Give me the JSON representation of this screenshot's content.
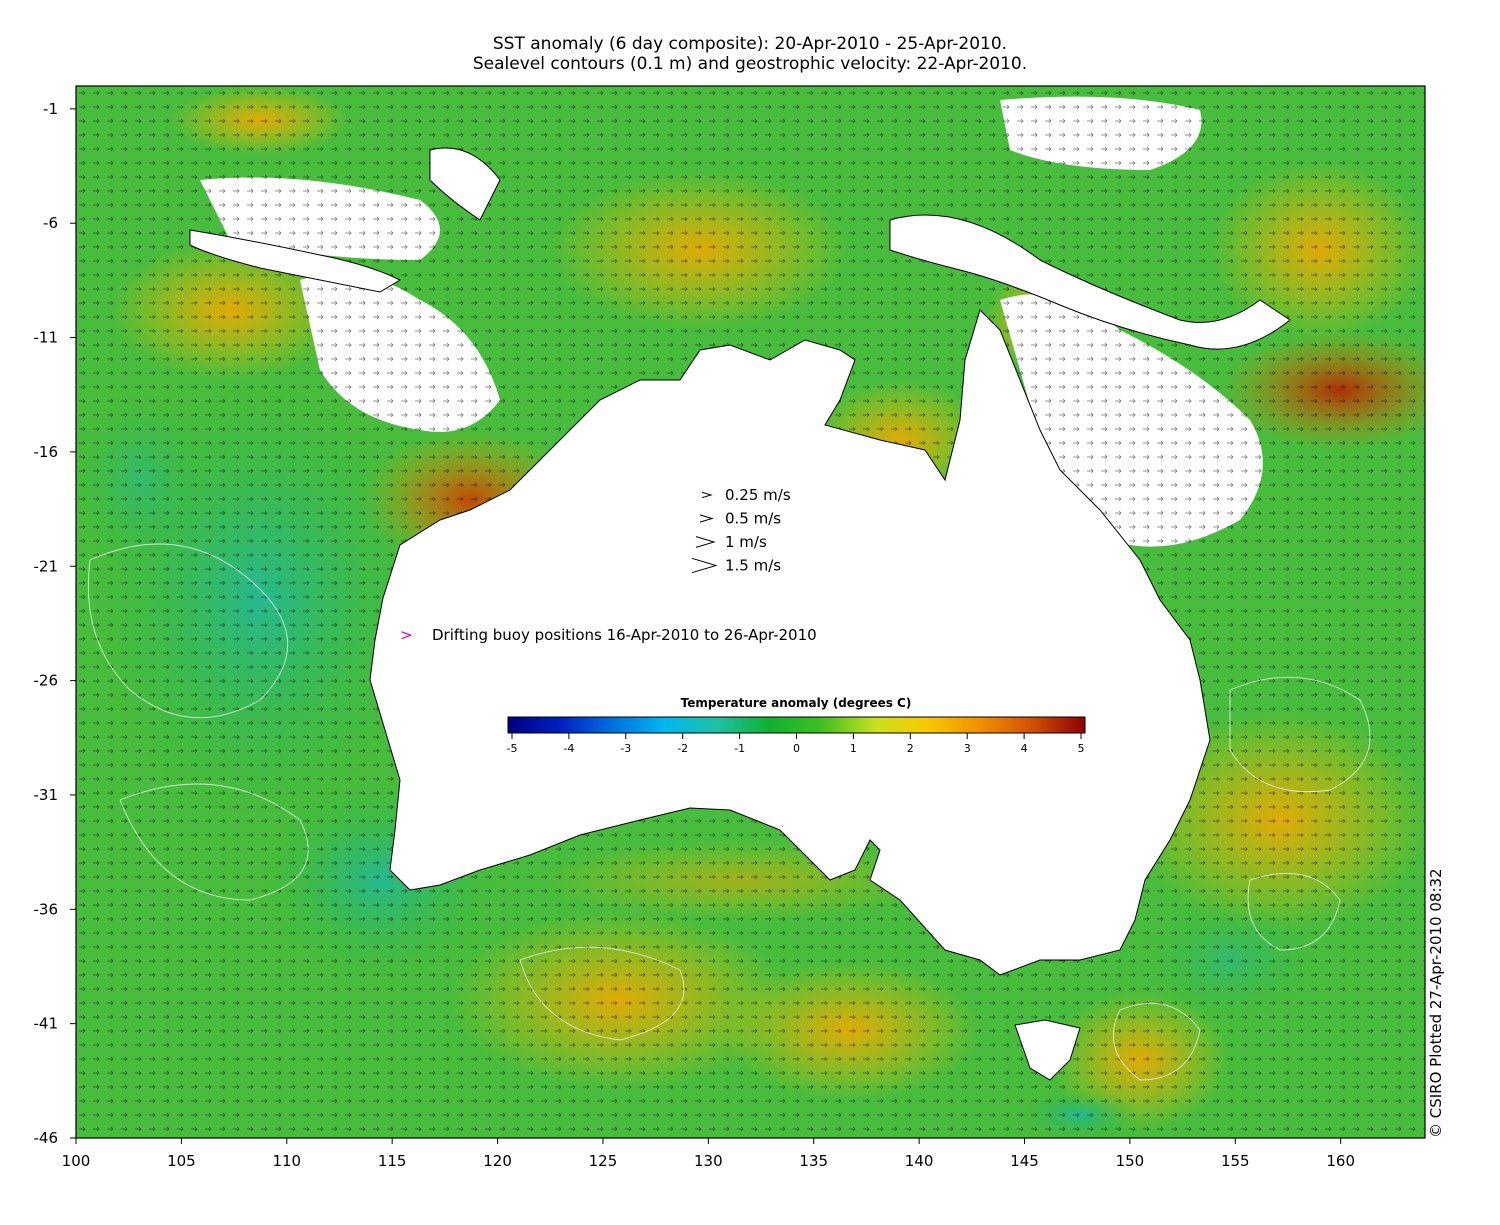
{
  "title_line1": "SST anomaly (6 day composite): 20-Apr-2010 - 25-Apr-2010.",
  "title_line2": "Sealevel contours (0.1 m) and geostrophic velocity: 22-Apr-2010.",
  "credit": "© CSIRO Plotted 27-Apr-2010 08:32",
  "velocity_legend": [
    {
      "label": "0.25 m/s",
      "speed": 0.25
    },
    {
      "label": "0.5 m/s",
      "speed": 0.5
    },
    {
      "label": "1 m/s",
      "speed": 1
    },
    {
      "label": "1.5 m/s",
      "speed": 1.5
    }
  ],
  "buoy_legend": {
    "symbol": ">",
    "label": "Drifting buoy positions 16-Apr-2010 to 26-Apr-2010",
    "color": "#e000e0"
  },
  "colorbar": {
    "title": "Temperature anomaly (degrees C)",
    "ticks": [
      "-5",
      "-4",
      "-3",
      "-2",
      "-1",
      "0",
      "1",
      "2",
      "3",
      "4",
      "5"
    ],
    "range": [
      -5,
      5
    ],
    "stops": [
      "#00007f",
      "#0020c0",
      "#0070e0",
      "#00b8f0",
      "#20c0a0",
      "#10b030",
      "#40c020",
      "#c8e020",
      "#f8c800",
      "#f09000",
      "#d05000",
      "#8c0000"
    ]
  },
  "chart_data": {
    "type": "heatmap",
    "xlabel": "",
    "ylabel": "",
    "xlim": [
      100,
      164
    ],
    "ylim": [
      -46,
      0
    ],
    "x_ticks": [
      "100",
      "105",
      "110",
      "115",
      "120",
      "125",
      "130",
      "135",
      "140",
      "145",
      "150",
      "155",
      "160"
    ],
    "y_ticks": [
      "-1",
      "-6",
      "-11",
      "-16",
      "-21",
      "-26",
      "-31",
      "-36",
      "-41",
      "-46"
    ]
  },
  "colors": {
    "ocean_cool": "#3cb83c",
    "ocean_warm": "#f0b400",
    "land": "#ffffff",
    "vector": "#000000"
  }
}
